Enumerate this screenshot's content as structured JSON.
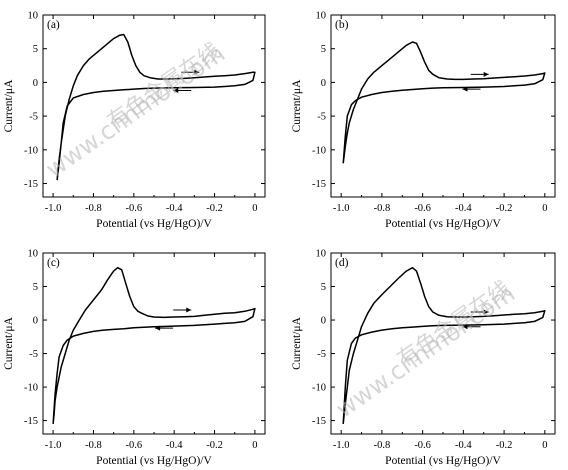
{
  "chart_data": [
    {
      "type": "line",
      "panel_label": "(a)",
      "xlabel": "Potential (vs Hg/HgO)/V",
      "ylabel": "Current/μA",
      "xlim": [
        -1.05,
        0.05
      ],
      "ylim": [
        -17,
        10
      ],
      "xticks": [
        -1.0,
        -0.8,
        -0.6,
        -0.4,
        -0.2,
        0
      ],
      "xtick_labels": [
        "-1.0",
        "-0.8",
        "-0.6",
        "-0.4",
        "-0.2",
        "0"
      ],
      "yticks": [
        -15,
        -10,
        -5,
        0,
        5,
        10
      ],
      "ytick_labels": [
        "-15",
        "-10",
        "-5",
        "0",
        "5",
        "10"
      ],
      "arrows": [
        {
          "x": -0.32,
          "y": 1.5,
          "direction": "right"
        },
        {
          "x": -0.36,
          "y": -1.2,
          "direction": "left"
        }
      ],
      "series": [
        {
          "x": [
            -0.98,
            -0.975,
            -0.97,
            -0.96,
            -0.95,
            -0.94,
            -0.92,
            -0.9,
            -0.88,
            -0.85,
            -0.82,
            -0.78,
            -0.74,
            -0.7,
            -0.67,
            -0.65,
            -0.63,
            -0.61,
            -0.59,
            -0.57,
            -0.55,
            -0.52,
            -0.48,
            -0.44,
            -0.4,
            -0.35,
            -0.3,
            -0.25,
            -0.2,
            -0.15,
            -0.1,
            -0.05,
            -0.01,
            0.0,
            -0.01,
            -0.05,
            -0.1,
            -0.15,
            -0.2,
            -0.3,
            -0.4,
            -0.5,
            -0.55,
            -0.6,
            -0.65,
            -0.7,
            -0.75,
            -0.8,
            -0.85,
            -0.9,
            -0.93,
            -0.95,
            -0.96,
            -0.97,
            -0.98
          ],
          "y": [
            -14.5,
            -13.0,
            -11.5,
            -9.0,
            -7.0,
            -5.0,
            -2.5,
            -0.5,
            1.0,
            2.5,
            3.5,
            4.5,
            5.5,
            6.5,
            7.0,
            7.1,
            6.0,
            4.0,
            2.5,
            1.5,
            1.0,
            0.7,
            0.5,
            0.5,
            0.55,
            0.6,
            0.7,
            0.8,
            0.9,
            1.0,
            1.1,
            1.3,
            1.5,
            1.5,
            0.3,
            -0.3,
            -0.5,
            -0.6,
            -0.7,
            -0.75,
            -0.8,
            -0.85,
            -0.9,
            -1.0,
            -1.1,
            -1.2,
            -1.3,
            -1.5,
            -1.8,
            -2.3,
            -3.5,
            -6.0,
            -9.0,
            -12.0,
            -14.5
          ]
        }
      ]
    },
    {
      "type": "line",
      "panel_label": "(b)",
      "xlabel": "Potential (vs Hg/HgO)/V",
      "ylabel": "Current/μA",
      "xlim": [
        -1.05,
        0.05
      ],
      "ylim": [
        -17,
        10
      ],
      "xticks": [
        -1.0,
        -0.8,
        -0.6,
        -0.4,
        -0.2,
        0
      ],
      "xtick_labels": [
        "-1.0",
        "-0.8",
        "-0.6",
        "-0.4",
        "-0.2",
        "0"
      ],
      "yticks": [
        -15,
        -10,
        -5,
        0,
        5,
        10
      ],
      "ytick_labels": [
        "-15",
        "-10",
        "-5",
        "0",
        "5",
        "10"
      ],
      "arrows": [
        {
          "x": -0.32,
          "y": 1.2,
          "direction": "right"
        },
        {
          "x": -0.36,
          "y": -1.0,
          "direction": "left"
        }
      ],
      "series": [
        {
          "x": [
            -0.99,
            -0.98,
            -0.97,
            -0.96,
            -0.94,
            -0.92,
            -0.9,
            -0.87,
            -0.84,
            -0.8,
            -0.76,
            -0.72,
            -0.68,
            -0.65,
            -0.63,
            -0.61,
            -0.59,
            -0.57,
            -0.55,
            -0.52,
            -0.48,
            -0.44,
            -0.4,
            -0.35,
            -0.3,
            -0.25,
            -0.2,
            -0.15,
            -0.1,
            -0.05,
            -0.01,
            0.0,
            -0.01,
            -0.05,
            -0.1,
            -0.15,
            -0.2,
            -0.3,
            -0.4,
            -0.5,
            -0.55,
            -0.6,
            -0.65,
            -0.7,
            -0.75,
            -0.8,
            -0.85,
            -0.9,
            -0.93,
            -0.95,
            -0.97,
            -0.98,
            -0.99
          ],
          "y": [
            -12.0,
            -9.5,
            -7.5,
            -6.0,
            -4.0,
            -2.5,
            -1.0,
            0.5,
            1.5,
            2.5,
            3.5,
            4.5,
            5.5,
            6.0,
            5.8,
            4.5,
            3.0,
            1.8,
            1.2,
            0.7,
            0.5,
            0.45,
            0.45,
            0.5,
            0.55,
            0.65,
            0.75,
            0.85,
            0.95,
            1.1,
            1.3,
            1.4,
            0.4,
            -0.2,
            -0.4,
            -0.5,
            -0.6,
            -0.7,
            -0.75,
            -0.8,
            -0.85,
            -0.95,
            -1.05,
            -1.15,
            -1.3,
            -1.5,
            -1.8,
            -2.2,
            -2.7,
            -3.3,
            -5.0,
            -8.0,
            -12.0
          ]
        }
      ]
    },
    {
      "type": "line",
      "panel_label": "(c)",
      "xlabel": "Potential (vs Hg/HgO)/V",
      "ylabel": "Current/μA",
      "xlim": [
        -1.05,
        0.05
      ],
      "ylim": [
        -17,
        10
      ],
      "xticks": [
        -1.0,
        -0.8,
        -0.6,
        -0.4,
        -0.2,
        0
      ],
      "xtick_labels": [
        "-1.0",
        "-0.8",
        "-0.6",
        "-0.4",
        "-0.2",
        "0"
      ],
      "yticks": [
        -15,
        -10,
        -5,
        0,
        5,
        10
      ],
      "ytick_labels": [
        "-15",
        "-10",
        "-5",
        "0",
        "5",
        "10"
      ],
      "arrows": [
        {
          "x": -0.36,
          "y": 1.5,
          "direction": "right"
        },
        {
          "x": -0.45,
          "y": -1.2,
          "direction": "left"
        }
      ],
      "series": [
        {
          "x": [
            -1.0,
            -0.995,
            -0.99,
            -0.98,
            -0.96,
            -0.94,
            -0.92,
            -0.9,
            -0.87,
            -0.84,
            -0.8,
            -0.76,
            -0.73,
            -0.7,
            -0.68,
            -0.66,
            -0.64,
            -0.62,
            -0.6,
            -0.58,
            -0.56,
            -0.53,
            -0.5,
            -0.45,
            -0.4,
            -0.35,
            -0.3,
            -0.25,
            -0.2,
            -0.15,
            -0.1,
            -0.05,
            -0.01,
            0.0,
            -0.01,
            -0.05,
            -0.1,
            -0.15,
            -0.2,
            -0.3,
            -0.4,
            -0.5,
            -0.6,
            -0.65,
            -0.7,
            -0.75,
            -0.8,
            -0.85,
            -0.9,
            -0.93,
            -0.95,
            -0.97,
            -0.98,
            -0.99,
            -1.0
          ],
          "y": [
            -15.5,
            -14.0,
            -12.0,
            -10.0,
            -7.0,
            -5.0,
            -3.0,
            -1.5,
            0.0,
            1.5,
            3.0,
            4.5,
            6.0,
            7.3,
            7.8,
            7.5,
            5.5,
            3.5,
            2.0,
            1.3,
            1.0,
            0.6,
            0.45,
            0.4,
            0.45,
            0.5,
            0.55,
            0.7,
            0.85,
            1.0,
            1.1,
            1.3,
            1.6,
            1.7,
            0.5,
            -0.2,
            -0.4,
            -0.5,
            -0.6,
            -0.8,
            -0.9,
            -1.0,
            -1.15,
            -1.3,
            -1.4,
            -1.5,
            -1.7,
            -2.0,
            -2.4,
            -3.0,
            -3.8,
            -5.5,
            -8.0,
            -11.0,
            -15.5
          ]
        }
      ]
    },
    {
      "type": "line",
      "panel_label": "(d)",
      "xlabel": "Potential (vs Hg/HgO)/V",
      "ylabel": "Current/μA",
      "xlim": [
        -1.05,
        0.05
      ],
      "ylim": [
        -17,
        10
      ],
      "xticks": [
        -1.0,
        -0.8,
        -0.6,
        -0.4,
        -0.2,
        0
      ],
      "xtick_labels": [
        "-1.0",
        "-0.8",
        "-0.6",
        "-0.4",
        "-0.2",
        "0"
      ],
      "yticks": [
        -15,
        -10,
        -5,
        0,
        5,
        10
      ],
      "ytick_labels": [
        "-15",
        "-10",
        "-5",
        "0",
        "5",
        "10"
      ],
      "arrows": [
        {
          "x": -0.32,
          "y": 1.2,
          "direction": "right"
        },
        {
          "x": -0.36,
          "y": -1.0,
          "direction": "left"
        }
      ],
      "series": [
        {
          "x": [
            -0.99,
            -0.98,
            -0.97,
            -0.96,
            -0.94,
            -0.92,
            -0.9,
            -0.87,
            -0.84,
            -0.8,
            -0.76,
            -0.72,
            -0.68,
            -0.65,
            -0.63,
            -0.61,
            -0.59,
            -0.57,
            -0.55,
            -0.52,
            -0.48,
            -0.44,
            -0.4,
            -0.35,
            -0.3,
            -0.25,
            -0.2,
            -0.15,
            -0.1,
            -0.05,
            -0.01,
            0.0,
            -0.01,
            -0.05,
            -0.1,
            -0.15,
            -0.2,
            -0.3,
            -0.4,
            -0.5,
            -0.55,
            -0.6,
            -0.65,
            -0.7,
            -0.75,
            -0.8,
            -0.85,
            -0.9,
            -0.93,
            -0.95,
            -0.97,
            -0.98,
            -0.99
          ],
          "y": [
            -15.5,
            -12.5,
            -10.0,
            -7.5,
            -5.0,
            -3.0,
            -1.0,
            1.0,
            2.5,
            3.8,
            5.0,
            6.2,
            7.3,
            7.8,
            7.3,
            5.5,
            3.5,
            2.0,
            1.2,
            0.7,
            0.5,
            0.45,
            0.45,
            0.5,
            0.55,
            0.65,
            0.75,
            0.85,
            0.95,
            1.1,
            1.3,
            1.4,
            0.4,
            -0.2,
            -0.4,
            -0.5,
            -0.6,
            -0.7,
            -0.75,
            -0.8,
            -0.85,
            -0.95,
            -1.05,
            -1.15,
            -1.3,
            -1.5,
            -1.8,
            -2.2,
            -2.7,
            -3.5,
            -6.0,
            -10.0,
            -15.5
          ]
        }
      ]
    }
  ],
  "watermarks": [
    {
      "text": "有色金属在线",
      "panel": 0
    },
    {
      "text": "www.cnnmol.com",
      "panel": 0
    },
    {
      "text": "有色金属在线",
      "panel": 3
    },
    {
      "text": "www.cnnmol.com",
      "panel": 3
    }
  ]
}
